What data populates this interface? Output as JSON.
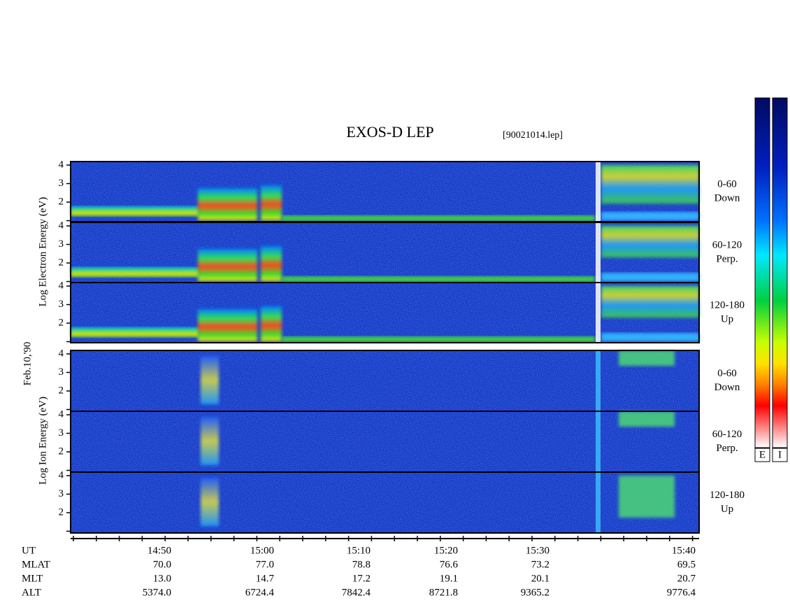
{
  "header": {
    "title": "EXOS-D LEP",
    "file": "[90021014.lep]"
  },
  "date": "Feb.10,'90",
  "yticks": [
    "4",
    "3",
    "2"
  ],
  "electron": {
    "axis_label": "Log Electron Energy (eV)",
    "panels": [
      {
        "range": "0-60",
        "dir": "Down"
      },
      {
        "range": "60-120",
        "dir": "Perp."
      },
      {
        "range": "120-180",
        "dir": "Up"
      }
    ]
  },
  "ion": {
    "axis_label": "Log Ion Energy (eV)",
    "panels": [
      {
        "range": "0-60",
        "dir": "Down"
      },
      {
        "range": "60-120",
        "dir": "Perp."
      },
      {
        "range": "120-180",
        "dir": "Up"
      }
    ]
  },
  "orbit": {
    "rows": [
      {
        "label": "UT",
        "values": [
          "14:50",
          "15:00",
          "15:10",
          "15:20",
          "15:30",
          "15:40"
        ]
      },
      {
        "label": "MLAT",
        "values": [
          "70.0",
          "77.0",
          "78.8",
          "76.6",
          "73.2",
          "69.5"
        ]
      },
      {
        "label": "MLT",
        "values": [
          "13.0",
          "14.7",
          "17.2",
          "19.1",
          "20.1",
          "20.7"
        ]
      },
      {
        "label": "ALT",
        "values": [
          "5374.0",
          "6724.4",
          "7842.4",
          "8721.8",
          "9365.2",
          "9776.4"
        ]
      }
    ]
  },
  "colorbar": {
    "labels": [
      "E",
      "I"
    ]
  }
}
